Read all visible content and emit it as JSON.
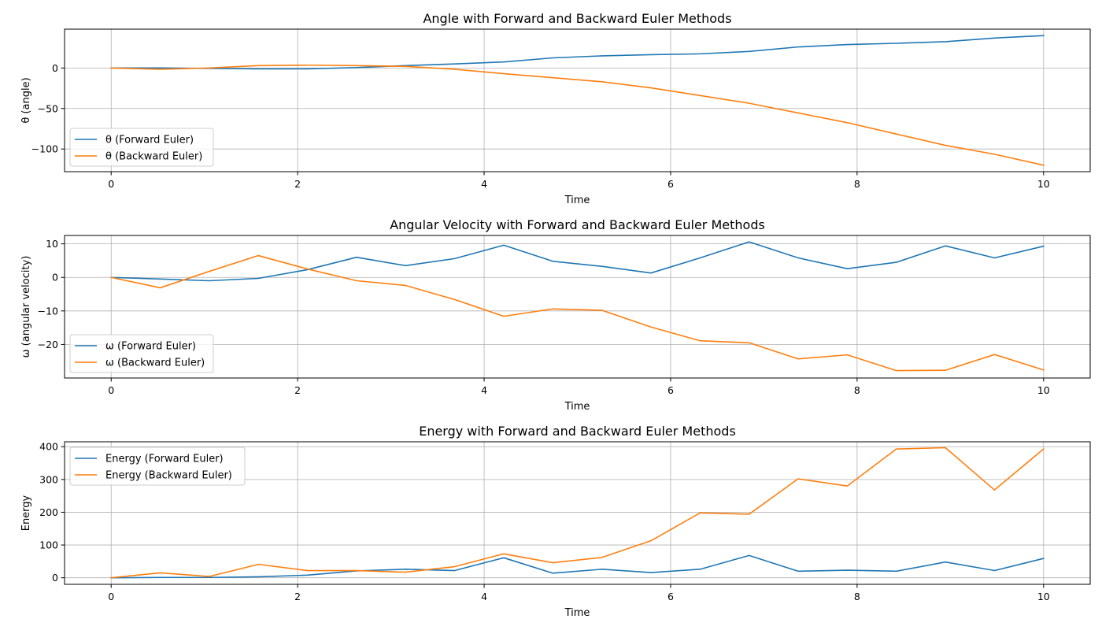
{
  "figure": {
    "colors": {
      "forward": "#1f77b4",
      "backward": "#ff7f0e",
      "grid": "#b0b0b0",
      "axes": "#000000"
    }
  },
  "chart_data": [
    {
      "type": "line",
      "title": "Angle with Forward and Backward Euler Methods",
      "xlabel": "Time",
      "ylabel": "θ (angle)",
      "xlim": [
        -0.5,
        10.5
      ],
      "ylim": [
        -128,
        48
      ],
      "xticks": [
        0,
        2,
        4,
        6,
        8,
        10
      ],
      "yticks": [
        0,
        -50,
        -100
      ],
      "ytick_labels": [
        "0",
        "−50",
        "−100"
      ],
      "grid": true,
      "legend_position": "lower-left",
      "x": [
        0,
        0.526,
        1.053,
        1.579,
        2.105,
        2.632,
        3.158,
        3.684,
        4.211,
        4.737,
        5.263,
        5.789,
        6.316,
        6.842,
        7.368,
        7.895,
        8.421,
        8.947,
        9.474,
        10
      ],
      "series": [
        {
          "name": "θ (Forward Euler)",
          "color_key": "forward",
          "values": [
            0,
            0,
            -0.5,
            -1,
            -1,
            0.5,
            3,
            5,
            7.5,
            12.5,
            15,
            16.5,
            17.5,
            20.5,
            26,
            29,
            30.5,
            32.5,
            37,
            40
          ]
        },
        {
          "name": "θ (Backward Euler)",
          "color_key": "backward",
          "values": [
            0,
            -1.5,
            0,
            3,
            3.5,
            3,
            2,
            -1.5,
            -7,
            -12,
            -17,
            -24.5,
            -34,
            -43.5,
            -55.5,
            -67.5,
            -81.5,
            -95.5,
            -106.5,
            -120
          ]
        }
      ]
    },
    {
      "type": "line",
      "title": "Angular Velocity with Forward and Backward Euler Methods",
      "xlabel": "Time",
      "ylabel": "ω (angular velocity)",
      "xlim": [
        -0.5,
        10.5
      ],
      "ylim": [
        -30,
        12.5
      ],
      "xticks": [
        0,
        2,
        4,
        6,
        8,
        10
      ],
      "yticks": [
        10,
        0,
        -10,
        -20
      ],
      "ytick_labels": [
        "10",
        "0",
        "−10",
        "−20"
      ],
      "grid": true,
      "legend_position": "lower-left",
      "x": [
        0,
        0.526,
        1.053,
        1.579,
        2.105,
        2.632,
        3.158,
        3.684,
        4.211,
        4.737,
        5.263,
        5.789,
        6.316,
        6.842,
        7.368,
        7.895,
        8.421,
        8.947,
        9.474,
        10
      ],
      "series": [
        {
          "name": "ω (Forward Euler)",
          "color_key": "forward",
          "values": [
            0,
            -0.5,
            -1,
            -0.3,
            2.3,
            6,
            3.5,
            5.6,
            9.6,
            4.8,
            3.3,
            1.3,
            5.8,
            10.6,
            5.8,
            2.6,
            4.5,
            9.4,
            5.8,
            9.3
          ]
        },
        {
          "name": "ω (Backward Euler)",
          "color_key": "backward",
          "values": [
            0,
            -3.1,
            1.8,
            6.5,
            2.5,
            -1,
            -2.4,
            -6.6,
            -11.6,
            -9.4,
            -9.8,
            -14.8,
            -18.9,
            -19.5,
            -24.3,
            -23.1,
            -27.8,
            -27.7,
            -23,
            -27.6
          ]
        }
      ]
    },
    {
      "type": "line",
      "title": "Energy with Forward and Backward Euler Methods",
      "xlabel": "Time",
      "ylabel": "Energy",
      "xlim": [
        -0.5,
        10.5
      ],
      "ylim": [
        -20,
        415
      ],
      "xticks": [
        0,
        2,
        4,
        6,
        8,
        10
      ],
      "yticks": [
        0,
        100,
        200,
        300,
        400
      ],
      "ytick_labels": [
        "0",
        "100",
        "200",
        "300",
        "400"
      ],
      "grid": true,
      "legend_position": "upper-left",
      "x": [
        0,
        0.526,
        1.053,
        1.579,
        2.105,
        2.632,
        3.158,
        3.684,
        4.211,
        4.737,
        5.263,
        5.789,
        6.316,
        6.842,
        7.368,
        7.895,
        8.421,
        8.947,
        9.474,
        10
      ],
      "series": [
        {
          "name": "Energy (Forward Euler)",
          "color_key": "forward",
          "values": [
            0,
            1,
            1,
            3,
            8,
            21,
            26,
            22,
            61,
            14,
            26,
            16,
            26,
            68,
            20,
            23,
            20,
            48,
            22,
            59
          ]
        },
        {
          "name": "Energy (Backward Euler)",
          "color_key": "backward",
          "values": [
            0,
            15,
            4,
            41,
            22,
            22,
            17,
            34,
            73,
            46,
            62,
            113,
            198,
            194,
            302,
            280,
            393,
            397,
            268,
            393
          ]
        }
      ]
    }
  ]
}
